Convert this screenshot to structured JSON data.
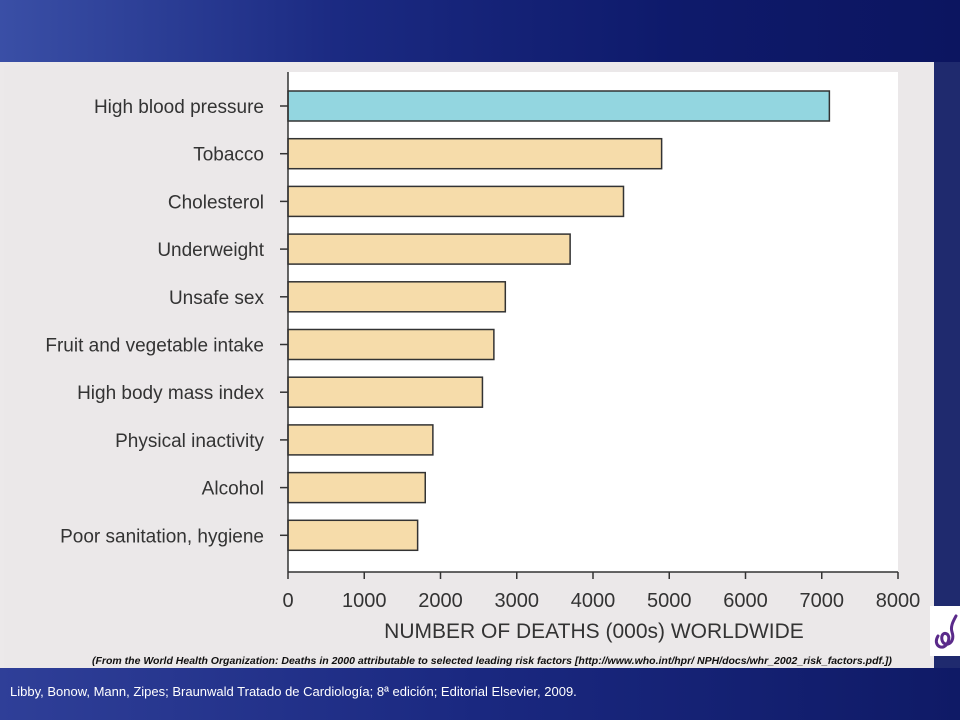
{
  "chart_data": {
    "type": "bar",
    "orientation": "horizontal",
    "categories": [
      "High blood pressure",
      "Tobacco",
      "Cholesterol",
      "Underweight",
      "Unsafe sex",
      "Fruit and vegetable intake",
      "High body mass index",
      "Physical inactivity",
      "Alcohol",
      "Poor sanitation, hygiene"
    ],
    "values": [
      7100,
      4900,
      4400,
      3700,
      2850,
      2700,
      2550,
      1900,
      1800,
      1700
    ],
    "xlabel": "NUMBER OF DEATHS (000s) WORLDWIDE",
    "ylabel": "",
    "xlim": [
      0,
      8000
    ],
    "xticks": [
      0,
      1000,
      2000,
      3000,
      4000,
      5000,
      6000,
      7000,
      8000
    ],
    "colors": {
      "highlight": "#93d6e0",
      "default": "#f6dcaa",
      "edge": "#333333"
    },
    "highlight_index": 0,
    "source_note": "(From the World Health Organization: Deaths in 2000 attributable to selected leading risk factors [http://www.who.int/hpr/ NPH/docs/whr_2002_risk_factors.pdf.])"
  },
  "footer": {
    "citation": "Libby, Bonow, Mann, Zipes; Braunwald Tratado de Cardiología; 8ª edición; Editorial Elsevier, 2009."
  }
}
